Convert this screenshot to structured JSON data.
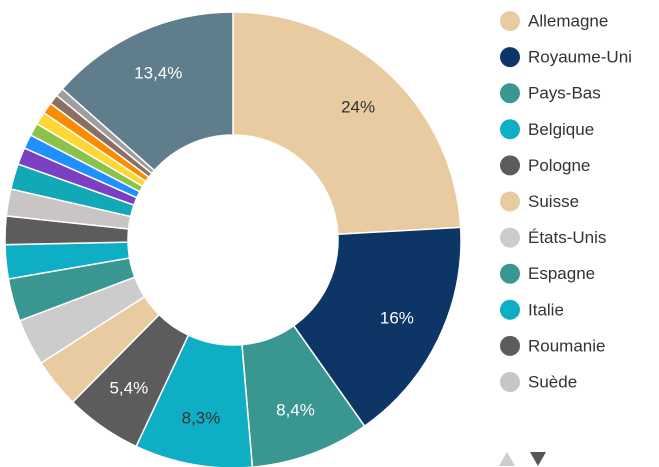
{
  "chart_data": {
    "type": "donut",
    "categories": [
      "Allemagne",
      "Royaume-Uni",
      "Pays-Bas",
      "Belgique",
      "Pologne",
      "Suisse",
      "États-Unis",
      "Espagne",
      "Italie",
      "Roumanie",
      "Suède",
      null,
      null,
      null,
      null,
      null,
      null,
      null,
      null,
      null
    ],
    "values": [
      24,
      16,
      8.4,
      8.3,
      5.4,
      3.5,
      3.3,
      3.0,
      2.4,
      2.0,
      1.9,
      1.8,
      1.2,
      1.0,
      0.9,
      0.9,
      0.8,
      0.7,
      0.6,
      13.4
    ],
    "value_labels": [
      "24%",
      "16%",
      "8,4%",
      "8,3%",
      "5,4%",
      null,
      null,
      null,
      null,
      null,
      null,
      null,
      null,
      null,
      null,
      null,
      null,
      null,
      null,
      "13,4%"
    ],
    "colors": [
      "#e8cba0",
      "#0d3566",
      "#3a9690",
      "#0eaec4",
      "#5c5c5c",
      "#e8cba0",
      "#cccccc",
      "#3a9690",
      "#0eaec4",
      "#5c5c5c",
      "#c9c5c5",
      "#11a9b5",
      "#7b3fc4",
      "#1e90ff",
      "#8bc34a",
      "#fdd835",
      "#fb8c00",
      "#8d6e63",
      "#9e9e9e",
      "#607d8b"
    ],
    "label_colors": [
      "#333333",
      "#ffffff",
      "#ffffff",
      "#333333",
      "#ffffff",
      null,
      null,
      null,
      null,
      null,
      null,
      null,
      null,
      null,
      null,
      null,
      null,
      null,
      null,
      "#ffffff"
    ],
    "legend": "right"
  }
}
